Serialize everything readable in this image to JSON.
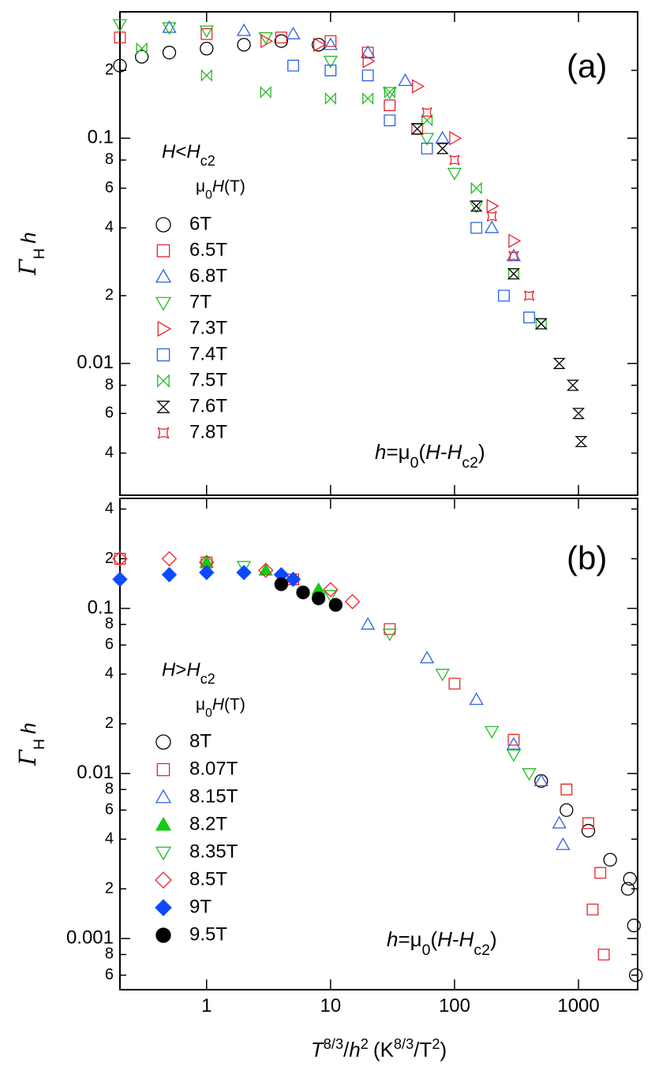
{
  "chart_data": [
    {
      "type": "scatter",
      "panel_label": "(a)",
      "ylabel": [
        "Γ",
        "H",
        "h"
      ],
      "legend_title": [
        "H",
        "<",
        "H",
        "c2"
      ],
      "legend_subtitle": [
        "μ",
        "0",
        "H",
        "(T)"
      ],
      "annotation": [
        "h",
        "=μ",
        "0",
        "(",
        "H",
        "-",
        "H",
        "c2",
        ")"
      ],
      "log_x": true,
      "log_y": true,
      "xlim": [
        0.2,
        3000
      ],
      "ylim": [
        0.0026,
        0.364
      ],
      "yticks": [
        {
          "value": 0.2,
          "label": "2"
        },
        0.1,
        {
          "value": 0.08,
          "label": "8"
        },
        {
          "value": 0.06,
          "label": "6"
        },
        {
          "value": 0.04,
          "label": "4"
        },
        {
          "value": 0.02,
          "label": "2"
        },
        0.01,
        {
          "value": 0.008,
          "label": "8"
        },
        {
          "value": 0.006,
          "label": "6"
        },
        {
          "value": 0.004,
          "label": "4"
        }
      ],
      "series": [
        {
          "name": "6T",
          "color": "#000000",
          "marker": "circle",
          "filled": false,
          "x": [
            0.2,
            0.3,
            0.5,
            1,
            2,
            4,
            8
          ],
          "y": [
            0.21,
            0.23,
            0.24,
            0.25,
            0.26,
            0.27,
            0.26
          ]
        },
        {
          "name": "6.5T",
          "color": "#e8242a",
          "marker": "square",
          "filled": false,
          "x": [
            0.2,
            1,
            4,
            10,
            20,
            30,
            50
          ],
          "y": [
            0.28,
            0.29,
            0.28,
            0.27,
            0.24,
            0.14,
            0.11
          ]
        },
        {
          "name": "6.8T",
          "color": "#2a62e0",
          "marker": "triangle-up",
          "filled": false,
          "x": [
            0.5,
            2,
            5,
            10,
            20,
            40,
            80,
            200,
            300
          ],
          "y": [
            0.31,
            0.3,
            0.29,
            0.26,
            0.24,
            0.18,
            0.1,
            0.04,
            0.03
          ]
        },
        {
          "name": "7T",
          "color": "#22bb22",
          "marker": "triangle-down",
          "filled": false,
          "x": [
            0.2,
            0.5,
            1,
            3,
            10,
            30,
            60,
            100,
            150
          ],
          "y": [
            0.32,
            0.31,
            0.3,
            0.28,
            0.22,
            0.16,
            0.1,
            0.07,
            0.05
          ]
        },
        {
          "name": "7.3T",
          "color": "#e8242a",
          "marker": "triangle-right",
          "filled": false,
          "x": [
            3,
            8,
            20,
            50,
            100,
            200,
            300
          ],
          "y": [
            0.27,
            0.26,
            0.22,
            0.17,
            0.1,
            0.05,
            0.035
          ]
        },
        {
          "name": "7.4T",
          "color": "#2a62e0",
          "marker": "square",
          "filled": false,
          "x": [
            5,
            10,
            20,
            30,
            60,
            150,
            250,
            400
          ],
          "y": [
            0.21,
            0.2,
            0.19,
            0.12,
            0.09,
            0.04,
            0.02,
            0.016
          ]
        },
        {
          "name": "7.5T",
          "color": "#22bb22",
          "marker": "bowtie",
          "filled": false,
          "x": [
            0.3,
            1,
            3,
            10,
            20,
            30,
            60,
            150,
            300,
            500
          ],
          "y": [
            0.25,
            0.19,
            0.16,
            0.15,
            0.15,
            0.16,
            0.12,
            0.06,
            0.025,
            0.015
          ]
        },
        {
          "name": "7.6T",
          "color": "#000000",
          "marker": "hourglass",
          "filled": false,
          "x": [
            50,
            80,
            150,
            300,
            500,
            700,
            900,
            1000,
            1050
          ],
          "y": [
            0.11,
            0.09,
            0.05,
            0.025,
            0.015,
            0.01,
            0.008,
            0.006,
            0.0045
          ]
        },
        {
          "name": "7.8T",
          "color": "#e8242a",
          "marker": "star",
          "filled": false,
          "x": [
            60,
            100,
            200,
            300,
            400
          ],
          "y": [
            0.13,
            0.08,
            0.045,
            0.03,
            0.02
          ]
        }
      ]
    },
    {
      "type": "scatter",
      "panel_label": "(b)",
      "ylabel": [
        "Γ",
        "H",
        "h"
      ],
      "legend_title": [
        "H",
        ">",
        "H",
        "c2"
      ],
      "legend_subtitle": [
        "μ",
        "0",
        "H",
        "(T)"
      ],
      "annotation": [
        "h",
        "=μ",
        "0",
        "(",
        "H",
        "-",
        "H",
        "c2",
        ")"
      ],
      "xlabel": [
        "T",
        "8/3",
        "/",
        "h",
        "2",
        "(K",
        "8/3",
        "/T",
        "2",
        ")"
      ],
      "log_x": true,
      "log_y": true,
      "xlim": [
        0.2,
        3000
      ],
      "ylim": [
        0.00049,
        0.464
      ],
      "xticks": [
        1,
        10,
        100,
        1000
      ],
      "yticks": [
        {
          "value": 0.4,
          "label": "4"
        },
        {
          "value": 0.2,
          "label": "2"
        },
        0.1,
        {
          "value": 0.08,
          "label": "8"
        },
        {
          "value": 0.06,
          "label": "6"
        },
        {
          "value": 0.04,
          "label": "4"
        },
        {
          "value": 0.02,
          "label": "2"
        },
        0.01,
        {
          "value": 0.008,
          "label": "8"
        },
        {
          "value": 0.006,
          "label": "6"
        },
        {
          "value": 0.004,
          "label": "4"
        },
        {
          "value": 0.002,
          "label": "2"
        },
        0.001,
        {
          "value": 0.0008,
          "label": "8"
        },
        {
          "value": 0.0006,
          "label": "6"
        }
      ],
      "series": [
        {
          "name": "8T",
          "color": "#000000",
          "marker": "circle",
          "filled": false,
          "x": [
            500,
            800,
            1200,
            1800,
            2500,
            2600,
            2800,
            2900
          ],
          "y": [
            0.009,
            0.006,
            0.0045,
            0.003,
            0.002,
            0.0023,
            0.0012,
            0.0006
          ]
        },
        {
          "name": "8.07T",
          "color": "#e8242a",
          "marker": "square",
          "filled": false,
          "x": [
            0.2,
            1,
            5,
            30,
            100,
            300,
            800,
            1200,
            1300,
            1500,
            1600
          ],
          "y": [
            0.2,
            0.19,
            0.15,
            0.075,
            0.035,
            0.016,
            0.008,
            0.005,
            0.0015,
            0.0025,
            0.0008
          ]
        },
        {
          "name": "8.15T",
          "color": "#2a62e0",
          "marker": "triangle-up",
          "filled": false,
          "x": [
            20,
            60,
            150,
            300,
            500,
            700,
            750
          ],
          "y": [
            0.08,
            0.05,
            0.028,
            0.015,
            0.009,
            0.005,
            0.0037
          ]
        },
        {
          "name": "8.2T",
          "color": "#11cc11",
          "marker": "triangle-up",
          "filled": true,
          "x": [
            1,
            3,
            8
          ],
          "y": [
            0.19,
            0.17,
            0.13
          ]
        },
        {
          "name": "8.35T",
          "color": "#22bb22",
          "marker": "triangle-down",
          "filled": false,
          "x": [
            2,
            10,
            30,
            80,
            200,
            300,
            400
          ],
          "y": [
            0.18,
            0.12,
            0.07,
            0.04,
            0.018,
            0.013,
            0.01
          ]
        },
        {
          "name": "8.5T",
          "color": "#e8242a",
          "marker": "diamond",
          "filled": false,
          "x": [
            0.2,
            0.5,
            1,
            3,
            10,
            15
          ],
          "y": [
            0.2,
            0.2,
            0.19,
            0.17,
            0.13,
            0.11
          ]
        },
        {
          "name": "9T",
          "color": "#0a4bff",
          "marker": "diamond",
          "filled": true,
          "x": [
            0.2,
            0.5,
            1,
            2,
            4,
            5
          ],
          "y": [
            0.15,
            0.16,
            0.165,
            0.165,
            0.16,
            0.15
          ]
        },
        {
          "name": "9.5T",
          "color": "#000000",
          "marker": "circle",
          "filled": true,
          "x": [
            4,
            6,
            8,
            11
          ],
          "y": [
            0.14,
            0.125,
            0.115,
            0.105
          ]
        }
      ]
    }
  ]
}
